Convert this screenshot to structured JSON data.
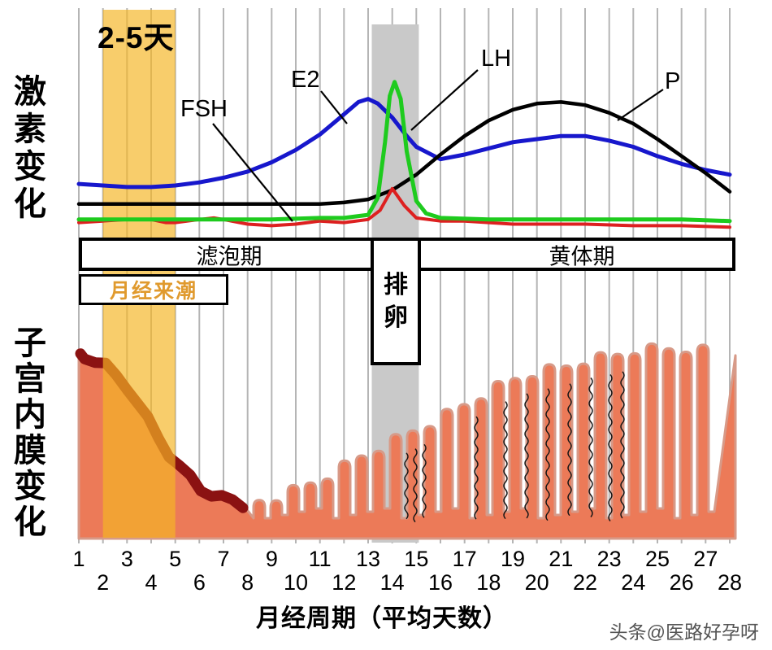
{
  "annotations": {
    "duration": "2-5天",
    "watermark": "头条@医路好孕呀"
  },
  "y_labels": {
    "hormone": "激素变化",
    "endometrium": "子宫内膜变化"
  },
  "phases": {
    "follicular": "滤泡期",
    "luteal": "黄体期",
    "menses": "月经来潮",
    "ovulation": "排卵"
  },
  "hormone_labels": {
    "fsh": "FSH",
    "e2": "E2",
    "lh": "LH",
    "p": "P"
  },
  "x_axis": {
    "title": "月经周期（平均天数）",
    "days": [
      1,
      2,
      3,
      4,
      5,
      6,
      7,
      8,
      9,
      10,
      11,
      12,
      13,
      14,
      15,
      16,
      17,
      18,
      19,
      20,
      21,
      22,
      23,
      24,
      25,
      26,
      27,
      28
    ]
  },
  "colors": {
    "gridline": "#b5b5b5",
    "fsh": "#dd2020",
    "e2": "#1717cc",
    "lh": "#1ecb1e",
    "p": "#000000",
    "menses_band": "#f5b525",
    "ovulation_band": "#c9c9c9",
    "endometrium": "#ec7a58",
    "endometrium_outline": "#d79a88",
    "shedding": "#8b1212",
    "menses_text": "#e09a2e"
  },
  "chart_data": {
    "type": "line",
    "title": "Menstrual cycle hormone levels and endometrial thickness",
    "x_label": "月经周期（平均天数）",
    "x_range": [
      1,
      28
    ],
    "y_unit": "relative level 0-100 (no numeric axis shown)",
    "legend_position": "labels beside curves",
    "grid": "vertical gridlines at each day",
    "series": [
      {
        "name": "E2",
        "color": "#1717cc",
        "points": [
          [
            1,
            31
          ],
          [
            2,
            30
          ],
          [
            3,
            29
          ],
          [
            4,
            29
          ],
          [
            5,
            30
          ],
          [
            6,
            32
          ],
          [
            7,
            35
          ],
          [
            8,
            39
          ],
          [
            9,
            45
          ],
          [
            10,
            53
          ],
          [
            11,
            63
          ],
          [
            12,
            76
          ],
          [
            12.6,
            84
          ],
          [
            13,
            86
          ],
          [
            13.4,
            83
          ],
          [
            14,
            74
          ],
          [
            14.6,
            62
          ],
          [
            15,
            55
          ],
          [
            16,
            47
          ],
          [
            17,
            50
          ],
          [
            18,
            54
          ],
          [
            19,
            58
          ],
          [
            20,
            60
          ],
          [
            21,
            62
          ],
          [
            22,
            62
          ],
          [
            23,
            59
          ],
          [
            24,
            55
          ],
          [
            25,
            49
          ],
          [
            26,
            44
          ],
          [
            27,
            40
          ],
          [
            28,
            37
          ]
        ]
      },
      {
        "name": "P",
        "color": "#000000",
        "points": [
          [
            1,
            18
          ],
          [
            3,
            18
          ],
          [
            5,
            18
          ],
          [
            7,
            18
          ],
          [
            9,
            18
          ],
          [
            11,
            18
          ],
          [
            12,
            19
          ],
          [
            13,
            21
          ],
          [
            14,
            27
          ],
          [
            15,
            37
          ],
          [
            16,
            50
          ],
          [
            17,
            62
          ],
          [
            18,
            72
          ],
          [
            19,
            79
          ],
          [
            20,
            83
          ],
          [
            21,
            84
          ],
          [
            22,
            82
          ],
          [
            23,
            77
          ],
          [
            24,
            70
          ],
          [
            25,
            60
          ],
          [
            26,
            49
          ],
          [
            27,
            38
          ],
          [
            28,
            26
          ]
        ]
      },
      {
        "name": "FSH",
        "color": "#dd2020",
        "points": [
          [
            1,
            6
          ],
          [
            2,
            7
          ],
          [
            3,
            8
          ],
          [
            4,
            8
          ],
          [
            4.6,
            6
          ],
          [
            5,
            6
          ],
          [
            6,
            8
          ],
          [
            6.6,
            9
          ],
          [
            7,
            8
          ],
          [
            8,
            5
          ],
          [
            9,
            4
          ],
          [
            10,
            5
          ],
          [
            11,
            7
          ],
          [
            12,
            6
          ],
          [
            13,
            8
          ],
          [
            13.5,
            14
          ],
          [
            14,
            28
          ],
          [
            14.5,
            17
          ],
          [
            15,
            9
          ],
          [
            16,
            7
          ],
          [
            17,
            7
          ],
          [
            18,
            6
          ],
          [
            19,
            5
          ],
          [
            20,
            5
          ],
          [
            22,
            5
          ],
          [
            24,
            4
          ],
          [
            26,
            4
          ],
          [
            28,
            3
          ]
        ]
      },
      {
        "name": "LH",
        "color": "#1ecb1e",
        "points": [
          [
            1,
            8
          ],
          [
            3,
            8
          ],
          [
            5,
            8
          ],
          [
            7,
            8
          ],
          [
            9,
            8
          ],
          [
            11,
            9
          ],
          [
            12,
            9
          ],
          [
            13,
            11
          ],
          [
            13.4,
            22
          ],
          [
            13.7,
            58
          ],
          [
            13.9,
            88
          ],
          [
            14.1,
            97
          ],
          [
            14.35,
            86
          ],
          [
            14.6,
            52
          ],
          [
            15,
            20
          ],
          [
            15.4,
            12
          ],
          [
            16,
            9
          ],
          [
            18,
            8
          ],
          [
            20,
            8
          ],
          [
            22,
            8
          ],
          [
            24,
            8
          ],
          [
            26,
            8
          ],
          [
            28,
            7
          ]
        ]
      }
    ],
    "bands": [
      {
        "name": "menses",
        "label": "2-5天",
        "from_day": 2,
        "to_day": 5,
        "color": "#f5b525"
      },
      {
        "name": "ovulation",
        "label": "排卵",
        "from_day": 13.15,
        "to_day": 15.1,
        "color": "#c9c9c9"
      }
    ],
    "endometrium_thickness_rel": [
      98,
      92,
      81,
      60,
      41,
      28,
      22,
      19,
      21,
      26,
      31,
      38,
      45,
      51,
      57,
      63,
      70,
      77,
      83,
      87,
      89,
      93,
      95,
      98,
      99,
      99,
      98,
      95
    ]
  }
}
